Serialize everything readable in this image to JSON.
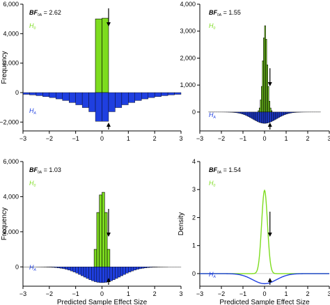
{
  "colors": {
    "h0": "#7ddc1f",
    "ha": "#1f3fe0",
    "axis": "#000000",
    "h0_label": "#7ddc1f",
    "ha_label": "#1f3fe0"
  },
  "chart_data": [
    {
      "type": "bar",
      "xlabel": "",
      "ylabel": "Frequency",
      "xlim": [
        -3,
        3
      ],
      "ylim": [
        -2600,
        6000
      ],
      "xticks": [
        "−3",
        "−2",
        "−1",
        "0",
        "1",
        "2",
        "3"
      ],
      "yticks": [
        {
          "v": -2000,
          "t": "−2,000"
        },
        {
          "v": 0,
          "t": "0"
        },
        {
          "v": 2000,
          "t": "2,000"
        },
        {
          "v": 4000,
          "t": "4,000"
        },
        {
          "v": 6000,
          "t": "6,000"
        }
      ],
      "bf": {
        "prefix": "BF",
        "sub": "0A",
        "value": "= 2.62"
      },
      "h0_label": {
        "main": "H",
        "sub": "0"
      },
      "ha_label": {
        "main": "H",
        "sub": "A"
      },
      "observed_effect": 0.25,
      "bin_width": 0.25,
      "h0_bars": [
        {
          "x0": -0.25,
          "x1": 0.0,
          "v": 5000
        },
        {
          "x0": 0.0,
          "x1": 0.25,
          "v": 5050
        }
      ],
      "ha_bars": [
        {
          "x0": -3.0,
          "x1": -2.75,
          "v": -120
        },
        {
          "x0": -2.75,
          "x1": -2.5,
          "v": -160
        },
        {
          "x0": -2.5,
          "x1": -2.25,
          "v": -210
        },
        {
          "x0": -2.25,
          "x1": -2.0,
          "v": -270
        },
        {
          "x0": -2.0,
          "x1": -1.75,
          "v": -340
        },
        {
          "x0": -1.75,
          "x1": -1.5,
          "v": -430
        },
        {
          "x0": -1.5,
          "x1": -1.25,
          "v": -540
        },
        {
          "x0": -1.25,
          "x1": -1.0,
          "v": -680
        },
        {
          "x0": -1.0,
          "x1": -0.75,
          "v": -830
        },
        {
          "x0": -0.75,
          "x1": -0.5,
          "v": -1020
        },
        {
          "x0": -0.5,
          "x1": -0.25,
          "v": -1300
        },
        {
          "x0": -0.25,
          "x1": 0.0,
          "v": -1950
        },
        {
          "x0": 0.0,
          "x1": 0.25,
          "v": -1950
        },
        {
          "x0": 0.25,
          "x1": 0.5,
          "v": -1300
        },
        {
          "x0": 0.5,
          "x1": 0.75,
          "v": -1020
        },
        {
          "x0": 0.75,
          "x1": 1.0,
          "v": -830
        },
        {
          "x0": 1.0,
          "x1": 1.25,
          "v": -680
        },
        {
          "x0": 1.25,
          "x1": 1.5,
          "v": -540
        },
        {
          "x0": 1.5,
          "x1": 1.75,
          "v": -430
        },
        {
          "x0": 1.75,
          "x1": 2.0,
          "v": -340
        },
        {
          "x0": 2.0,
          "x1": 2.25,
          "v": -270
        },
        {
          "x0": 2.25,
          "x1": 2.5,
          "v": -210
        },
        {
          "x0": 2.5,
          "x1": 2.75,
          "v": -160
        },
        {
          "x0": 2.75,
          "x1": 3.0,
          "v": -120
        }
      ]
    },
    {
      "type": "bar",
      "xlabel": "",
      "ylabel": "",
      "xlim": [
        -3,
        3
      ],
      "ylim": [
        -700,
        4000
      ],
      "xticks": [
        "−3",
        "−2",
        "−1",
        "0",
        "1",
        "2",
        "3"
      ],
      "yticks": [
        {
          "v": 0,
          "t": "0"
        },
        {
          "v": 1000,
          "t": "1,000"
        },
        {
          "v": 2000,
          "t": "2,000"
        },
        {
          "v": 3000,
          "t": "3,000"
        },
        {
          "v": 4000,
          "t": "4,000"
        }
      ],
      "bf": {
        "prefix": "BF",
        "sub": "0A",
        "value": "= 1.55"
      },
      "h0_label": {
        "main": "H",
        "sub": "0"
      },
      "ha_label": {
        "main": "H",
        "sub": "A"
      },
      "observed_effect": 0.25,
      "bin_width": 0.05,
      "h0_bars": [
        {
          "x0": -0.3,
          "x1": -0.25,
          "v": 50
        },
        {
          "x0": -0.25,
          "x1": -0.2,
          "v": 150
        },
        {
          "x0": -0.2,
          "x1": -0.15,
          "v": 450
        },
        {
          "x0": -0.15,
          "x1": -0.1,
          "v": 950
        },
        {
          "x0": -0.1,
          "x1": -0.05,
          "v": 1900
        },
        {
          "x0": -0.05,
          "x1": 0.0,
          "v": 2750
        },
        {
          "x0": 0.0,
          "x1": 0.05,
          "v": 3200
        },
        {
          "x0": 0.05,
          "x1": 0.1,
          "v": 2700
        },
        {
          "x0": 0.1,
          "x1": 0.15,
          "v": 1750
        },
        {
          "x0": 0.15,
          "x1": 0.2,
          "v": 950
        },
        {
          "x0": 0.2,
          "x1": 0.25,
          "v": 400
        },
        {
          "x0": 0.25,
          "x1": 0.3,
          "v": 150
        },
        {
          "x0": 0.3,
          "x1": 0.35,
          "v": 50
        }
      ],
      "ha_curve": {
        "peak": -420,
        "width": 0.55,
        "xmin": -2.6,
        "xmax": 2.6,
        "bin": 0.05
      }
    },
    {
      "type": "bar",
      "xlabel": "Predicted Sample Effect Size",
      "ylabel": "Frequency",
      "xlim": [
        -3,
        3
      ],
      "ylim": [
        -1100,
        6000
      ],
      "xticks": [
        "−3",
        "−2",
        "−1",
        "0",
        "1",
        "2",
        "3"
      ],
      "yticks": [
        {
          "v": 0,
          "t": "0"
        },
        {
          "v": 2000,
          "t": "2,000"
        },
        {
          "v": 4000,
          "t": "4,000"
        },
        {
          "v": 6000,
          "t": "6,000"
        }
      ],
      "bf": {
        "prefix": "BF",
        "sub": "0A",
        "value": "= 1.03"
      },
      "h0_label": {
        "main": "H",
        "sub": "0"
      },
      "ha_label": {
        "main": "H",
        "sub": "A"
      },
      "observed_effect": 0.25,
      "bin_width": 0.1,
      "h0_bars": [
        {
          "x0": -0.3,
          "x1": -0.2,
          "v": 1000
        },
        {
          "x0": -0.2,
          "x1": -0.1,
          "v": 3100
        },
        {
          "x0": -0.1,
          "x1": 0.0,
          "v": 4100
        },
        {
          "x0": 0.0,
          "x1": 0.1,
          "v": 4250
        },
        {
          "x0": 0.1,
          "x1": 0.2,
          "v": 3100
        },
        {
          "x0": 0.2,
          "x1": 0.3,
          "v": 1000
        }
      ],
      "ha_curve": {
        "peak": -900,
        "width": 0.7,
        "xmin": -3.0,
        "xmax": 3.0,
        "bin": 0.1
      }
    },
    {
      "type": "line",
      "xlabel": "Predicted Sample Effect Size",
      "ylabel": "Density",
      "xlim": [
        -3,
        3
      ],
      "ylim": [
        -0.45,
        4
      ],
      "xticks": [
        "−3",
        "−2",
        "−1",
        "0",
        "1",
        "2",
        "3"
      ],
      "yticks": [
        {
          "v": 0,
          "t": "0"
        },
        {
          "v": 1,
          "t": "1"
        },
        {
          "v": 2,
          "t": "2"
        },
        {
          "v": 3,
          "t": "3"
        },
        {
          "v": 4,
          "t": "4"
        }
      ],
      "bf": {
        "prefix": "BF",
        "sub": "0A",
        "value": "= 1.54"
      },
      "h0_label": {
        "main": "H",
        "sub": "0"
      },
      "ha_label": {
        "main": "H",
        "sub": "A"
      },
      "observed_effect": 0.25,
      "h0_density": {
        "peak": 2.97,
        "sd": 0.135
      },
      "ha_density": {
        "peak": -0.36,
        "sd": 0.55
      }
    }
  ]
}
